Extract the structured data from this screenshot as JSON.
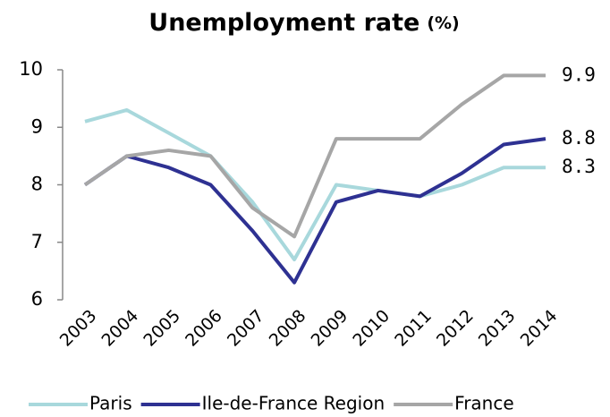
{
  "chart_data": {
    "type": "line",
    "title": "Unemployment rate",
    "subtitle": "(%)",
    "categories": [
      "2003",
      "2004",
      "2005",
      "2006",
      "2007",
      "2008",
      "2009",
      "2010",
      "2011",
      "2012",
      "2013",
      "2014"
    ],
    "series": [
      {
        "name": "Paris",
        "color": "#a8d8dc",
        "values": [
          9.1,
          9.3,
          8.9,
          8.5,
          7.7,
          6.7,
          8.0,
          7.9,
          7.8,
          8.0,
          8.3,
          8.3
        ]
      },
      {
        "name": "Ile-de-France Region",
        "color": "#2e3192",
        "values": [
          8.0,
          8.5,
          8.3,
          8.0,
          7.2,
          6.3,
          7.7,
          7.9,
          7.8,
          8.2,
          8.7,
          8.8
        ]
      },
      {
        "name": "France",
        "color": "#a6a6a6",
        "values": [
          8.0,
          8.5,
          8.6,
          8.5,
          7.6,
          7.1,
          8.8,
          8.8,
          8.8,
          9.4,
          9.9,
          9.9
        ]
      }
    ],
    "ylim": [
      6,
      10
    ],
    "yticks": [
      6,
      7,
      8,
      9,
      10
    ],
    "grid": false,
    "legend": "bottom"
  }
}
